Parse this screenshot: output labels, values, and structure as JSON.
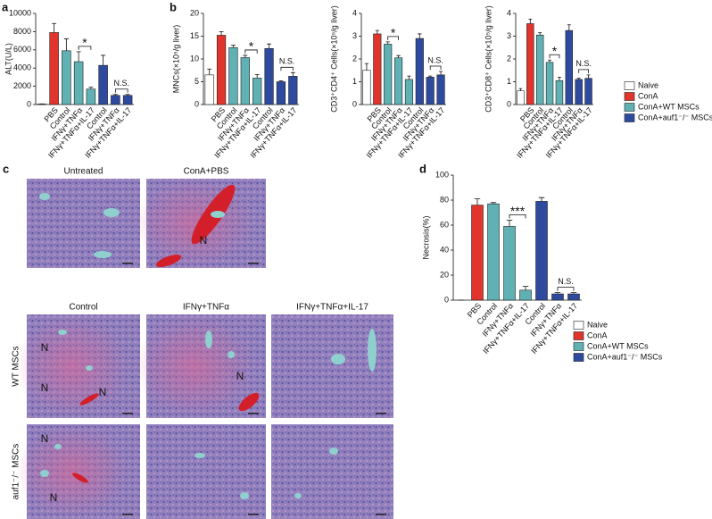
{
  "chart_data": [
    {
      "type": "bar",
      "panel": "a",
      "ylabel": "ALT(U/L)",
      "categories": [
        null,
        "PBS",
        "Control",
        "IFNγ+TNFα",
        "IFNγ+TNFα+IL-17",
        "Control",
        "IFNγ+TNFα",
        "IFNγ+TNFα+IL-17"
      ],
      "series": [
        {
          "name": "Naive",
          "color": "#ffffff",
          "values": [
            50,
            null,
            null,
            null,
            null,
            null,
            null,
            null
          ],
          "errors": [
            20,
            null,
            null,
            null,
            null,
            null,
            null,
            null
          ]
        },
        {
          "name": "ConA",
          "color": "#e0342c",
          "values": [
            null,
            7900,
            null,
            null,
            null,
            null,
            null,
            null
          ],
          "errors": [
            null,
            1000,
            null,
            null,
            null,
            null,
            null,
            null
          ]
        },
        {
          "name": "ConA+WT MSCs",
          "color": "#5fb1b3",
          "values": [
            null,
            null,
            5900,
            4700,
            1700,
            null,
            null,
            null
          ],
          "errors": [
            null,
            null,
            1300,
            1100,
            200,
            null,
            null,
            null
          ]
        },
        {
          "name": "ConA+auf1⁻/⁻ MSCs",
          "color": "#2e4a9e",
          "values": [
            null,
            null,
            null,
            null,
            null,
            4300,
            1000,
            1000
          ],
          "errors": [
            null,
            null,
            null,
            null,
            null,
            1100,
            100,
            100
          ]
        }
      ],
      "ylim": [
        0,
        10000
      ],
      "yticks": [
        0,
        2000,
        4000,
        6000,
        8000,
        10000
      ],
      "annotations": [
        {
          "text": "*",
          "from": 3,
          "to": 4
        },
        {
          "text": "N.S.",
          "from": 6,
          "to": 7
        }
      ]
    },
    {
      "type": "bar",
      "panel": "b",
      "ylabel": "MNCs(×10⁵/g liver)",
      "categories": [
        null,
        "PBS",
        "Control",
        "IFNγ+TNFα",
        "IFNγ+TNFα+IL-17",
        "Control",
        "IFNγ+TNFα",
        "IFNγ+TNFα+IL-17"
      ],
      "series": [
        {
          "name": "Naive",
          "color": "#ffffff",
          "values": [
            6.5,
            null,
            null,
            null,
            null,
            null,
            null,
            null
          ],
          "errors": [
            1.3,
            null,
            null,
            null,
            null,
            null,
            null,
            null
          ]
        },
        {
          "name": "ConA",
          "color": "#e0342c",
          "values": [
            null,
            15.2,
            null,
            null,
            null,
            null,
            null,
            null
          ],
          "errors": [
            null,
            0.8,
            null,
            null,
            null,
            null,
            null,
            null
          ]
        },
        {
          "name": "ConA+WT MSCs",
          "color": "#5fb1b3",
          "values": [
            null,
            null,
            12.5,
            10.3,
            5.8,
            null,
            null,
            null
          ],
          "errors": [
            null,
            null,
            0.5,
            0.5,
            0.8,
            null,
            null,
            null
          ]
        },
        {
          "name": "ConA+auf1⁻/⁻ MSCs",
          "color": "#2e4a9e",
          "values": [
            null,
            null,
            null,
            null,
            null,
            12.3,
            5.0,
            6.2
          ],
          "errors": [
            null,
            null,
            null,
            null,
            null,
            1.0,
            0.2,
            0.8
          ]
        }
      ],
      "ylim": [
        0,
        20
      ],
      "yticks": [
        0,
        5,
        10,
        15,
        20
      ],
      "annotations": [
        {
          "text": "*",
          "from": 3,
          "to": 4
        },
        {
          "text": "N.S.",
          "from": 6,
          "to": 7
        }
      ]
    },
    {
      "type": "bar",
      "ylabel": "CD3⁺CD4⁺ Cells(×10⁵/g liver)",
      "categories": [
        null,
        "PBS",
        "Control",
        "IFNγ+TNFα",
        "IFNγ+TNFα+IL-17",
        "Control",
        "IFNγ+TNFα",
        "IFNγ+TNFα+IL-17"
      ],
      "series": [
        {
          "name": "Naive",
          "color": "#ffffff",
          "values": [
            1.5,
            null,
            null,
            null,
            null,
            null,
            null,
            null
          ],
          "errors": [
            0.3,
            null,
            null,
            null,
            null,
            null,
            null,
            null
          ]
        },
        {
          "name": "ConA",
          "color": "#e0342c",
          "values": [
            null,
            3.1,
            null,
            null,
            null,
            null,
            null,
            null
          ],
          "errors": [
            null,
            0.15,
            null,
            null,
            null,
            null,
            null,
            null
          ]
        },
        {
          "name": "ConA+WT MSCs",
          "color": "#5fb1b3",
          "values": [
            null,
            null,
            2.65,
            2.05,
            1.1,
            null,
            null,
            null
          ],
          "errors": [
            null,
            null,
            0.1,
            0.1,
            0.15,
            null,
            null,
            null
          ]
        },
        {
          "name": "ConA+auf1⁻/⁻ MSCs",
          "color": "#2e4a9e",
          "values": [
            null,
            null,
            null,
            null,
            null,
            2.9,
            1.2,
            1.3
          ],
          "errors": [
            null,
            null,
            null,
            null,
            null,
            0.2,
            0.05,
            0.15
          ]
        }
      ],
      "ylim": [
        0,
        4
      ],
      "yticks": [
        0,
        1,
        2,
        3,
        4
      ],
      "annotations": [
        {
          "text": "*",
          "from": 2,
          "to": 3
        },
        {
          "text": "N.S.",
          "from": 6,
          "to": 7
        }
      ]
    },
    {
      "type": "bar",
      "ylabel": "CD3⁺CD8⁺ Cells(×10⁵/g liver)",
      "categories": [
        null,
        "PBS",
        "Control",
        "IFNγ+TNFα",
        "IFNγ+TNFα+IL-17",
        "Control",
        "IFNγ+TNFα",
        "IFNγ+TNFα+IL-17"
      ],
      "series": [
        {
          "name": "Naive",
          "color": "#ffffff",
          "values": [
            0.6,
            null,
            null,
            null,
            null,
            null,
            null,
            null
          ],
          "errors": [
            0.1,
            null,
            null,
            null,
            null,
            null,
            null,
            null
          ]
        },
        {
          "name": "ConA",
          "color": "#e0342c",
          "values": [
            null,
            3.55,
            null,
            null,
            null,
            null,
            null,
            null
          ],
          "errors": [
            null,
            0.2,
            null,
            null,
            null,
            null,
            null,
            null
          ]
        },
        {
          "name": "ConA+WT MSCs",
          "color": "#5fb1b3",
          "values": [
            null,
            null,
            3.05,
            1.85,
            1.05,
            null,
            null,
            null
          ],
          "errors": [
            null,
            null,
            0.1,
            0.1,
            0.15,
            null,
            null,
            null
          ]
        },
        {
          "name": "ConA+auf1⁻/⁻ MSCs",
          "color": "#2e4a9e",
          "values": [
            null,
            null,
            null,
            null,
            null,
            3.25,
            1.1,
            1.15
          ],
          "errors": [
            null,
            null,
            null,
            null,
            null,
            0.25,
            0.05,
            0.15
          ]
        }
      ],
      "ylim": [
        0,
        4
      ],
      "yticks": [
        0,
        1,
        2,
        3,
        4
      ],
      "legend": "right",
      "annotations": [
        {
          "text": "*",
          "from": 3,
          "to": 4
        },
        {
          "text": "N.S.",
          "from": 6,
          "to": 7
        }
      ]
    },
    {
      "type": "bar",
      "panel": "d",
      "ylabel": "Necrosis(%)",
      "categories": [
        null,
        "PBS",
        "Control",
        "IFNγ+TNFα",
        "IFNγ+TNFα+IL-17",
        "Control",
        "IFNγ+TNFα",
        "IFNγ+TNFα+IL-17"
      ],
      "series": [
        {
          "name": "Naive",
          "color": "#ffffff",
          "values": [
            0,
            null,
            null,
            null,
            null,
            null,
            null,
            null
          ],
          "errors": [
            0,
            null,
            null,
            null,
            null,
            null,
            null,
            null
          ]
        },
        {
          "name": "ConA",
          "color": "#e0342c",
          "values": [
            null,
            76,
            null,
            null,
            null,
            null,
            null,
            null
          ],
          "errors": [
            null,
            5,
            null,
            null,
            null,
            null,
            null,
            null
          ]
        },
        {
          "name": "ConA+WT MSCs",
          "color": "#5fb1b3",
          "values": [
            null,
            null,
            77,
            59,
            8,
            null,
            null,
            null
          ],
          "errors": [
            null,
            null,
            1,
            5,
            3,
            null,
            null,
            null
          ]
        },
        {
          "name": "ConA+auf1⁻/⁻ MSCs",
          "color": "#2e4a9e",
          "values": [
            null,
            null,
            null,
            null,
            null,
            79,
            5,
            5
          ],
          "errors": [
            null,
            null,
            null,
            null,
            null,
            3,
            1,
            1
          ]
        }
      ],
      "ylim": [
        0,
        100
      ],
      "yticks": [
        0,
        20,
        40,
        60,
        80,
        100
      ],
      "legend": "right",
      "annotations": [
        {
          "text": "***",
          "from": 3,
          "to": 4
        },
        {
          "text": "N.S.",
          "from": 6,
          "to": 7
        }
      ]
    }
  ],
  "histology": {
    "panel": "c",
    "top_labels": [
      "Untreated",
      "ConA+PBS"
    ],
    "labels": [
      "Control",
      "IFNγ+TNFα",
      "IFNγ+TNFα+IL-17"
    ],
    "row_labels": [
      "WT MSCs",
      "auf1⁻/⁻ MSCs"
    ],
    "marker": "N"
  }
}
